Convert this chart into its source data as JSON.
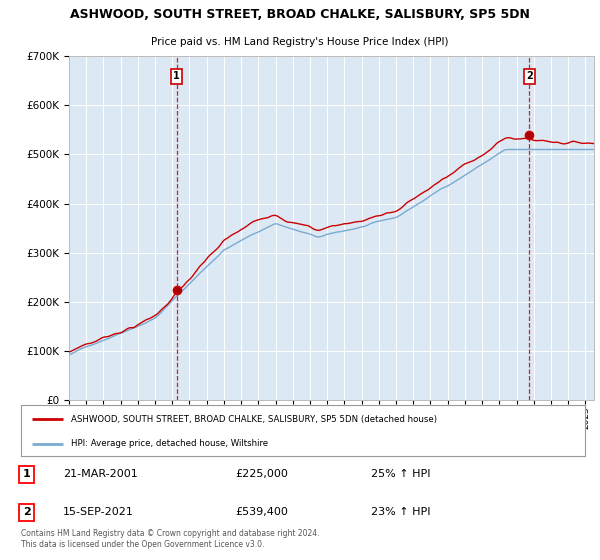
{
  "title": "ASHWOOD, SOUTH STREET, BROAD CHALKE, SALISBURY, SP5 5DN",
  "subtitle": "Price paid vs. HM Land Registry's House Price Index (HPI)",
  "legend_label_red": "ASHWOOD, SOUTH STREET, BROAD CHALKE, SALISBURY, SP5 5DN (detached house)",
  "legend_label_blue": "HPI: Average price, detached house, Wiltshire",
  "transaction1_date": "21-MAR-2001",
  "transaction1_price": "£225,000",
  "transaction1_hpi": "25% ↑ HPI",
  "transaction1_year": 2001.22,
  "transaction1_value": 225000,
  "transaction2_date": "15-SEP-2021",
  "transaction2_price": "£539,400",
  "transaction2_hpi": "23% ↑ HPI",
  "transaction2_year": 2021.71,
  "transaction2_value": 539400,
  "copyright_text": "Contains HM Land Registry data © Crown copyright and database right 2024.\nThis data is licensed under the Open Government Licence v3.0.",
  "plot_bg_color": "#dce9f5",
  "red_color": "#cc0000",
  "blue_color": "#7aaad0",
  "grid_color": "#ffffff",
  "ylim": [
    0,
    700000
  ],
  "xlim_start": 1995.0,
  "xlim_end": 2025.5
}
